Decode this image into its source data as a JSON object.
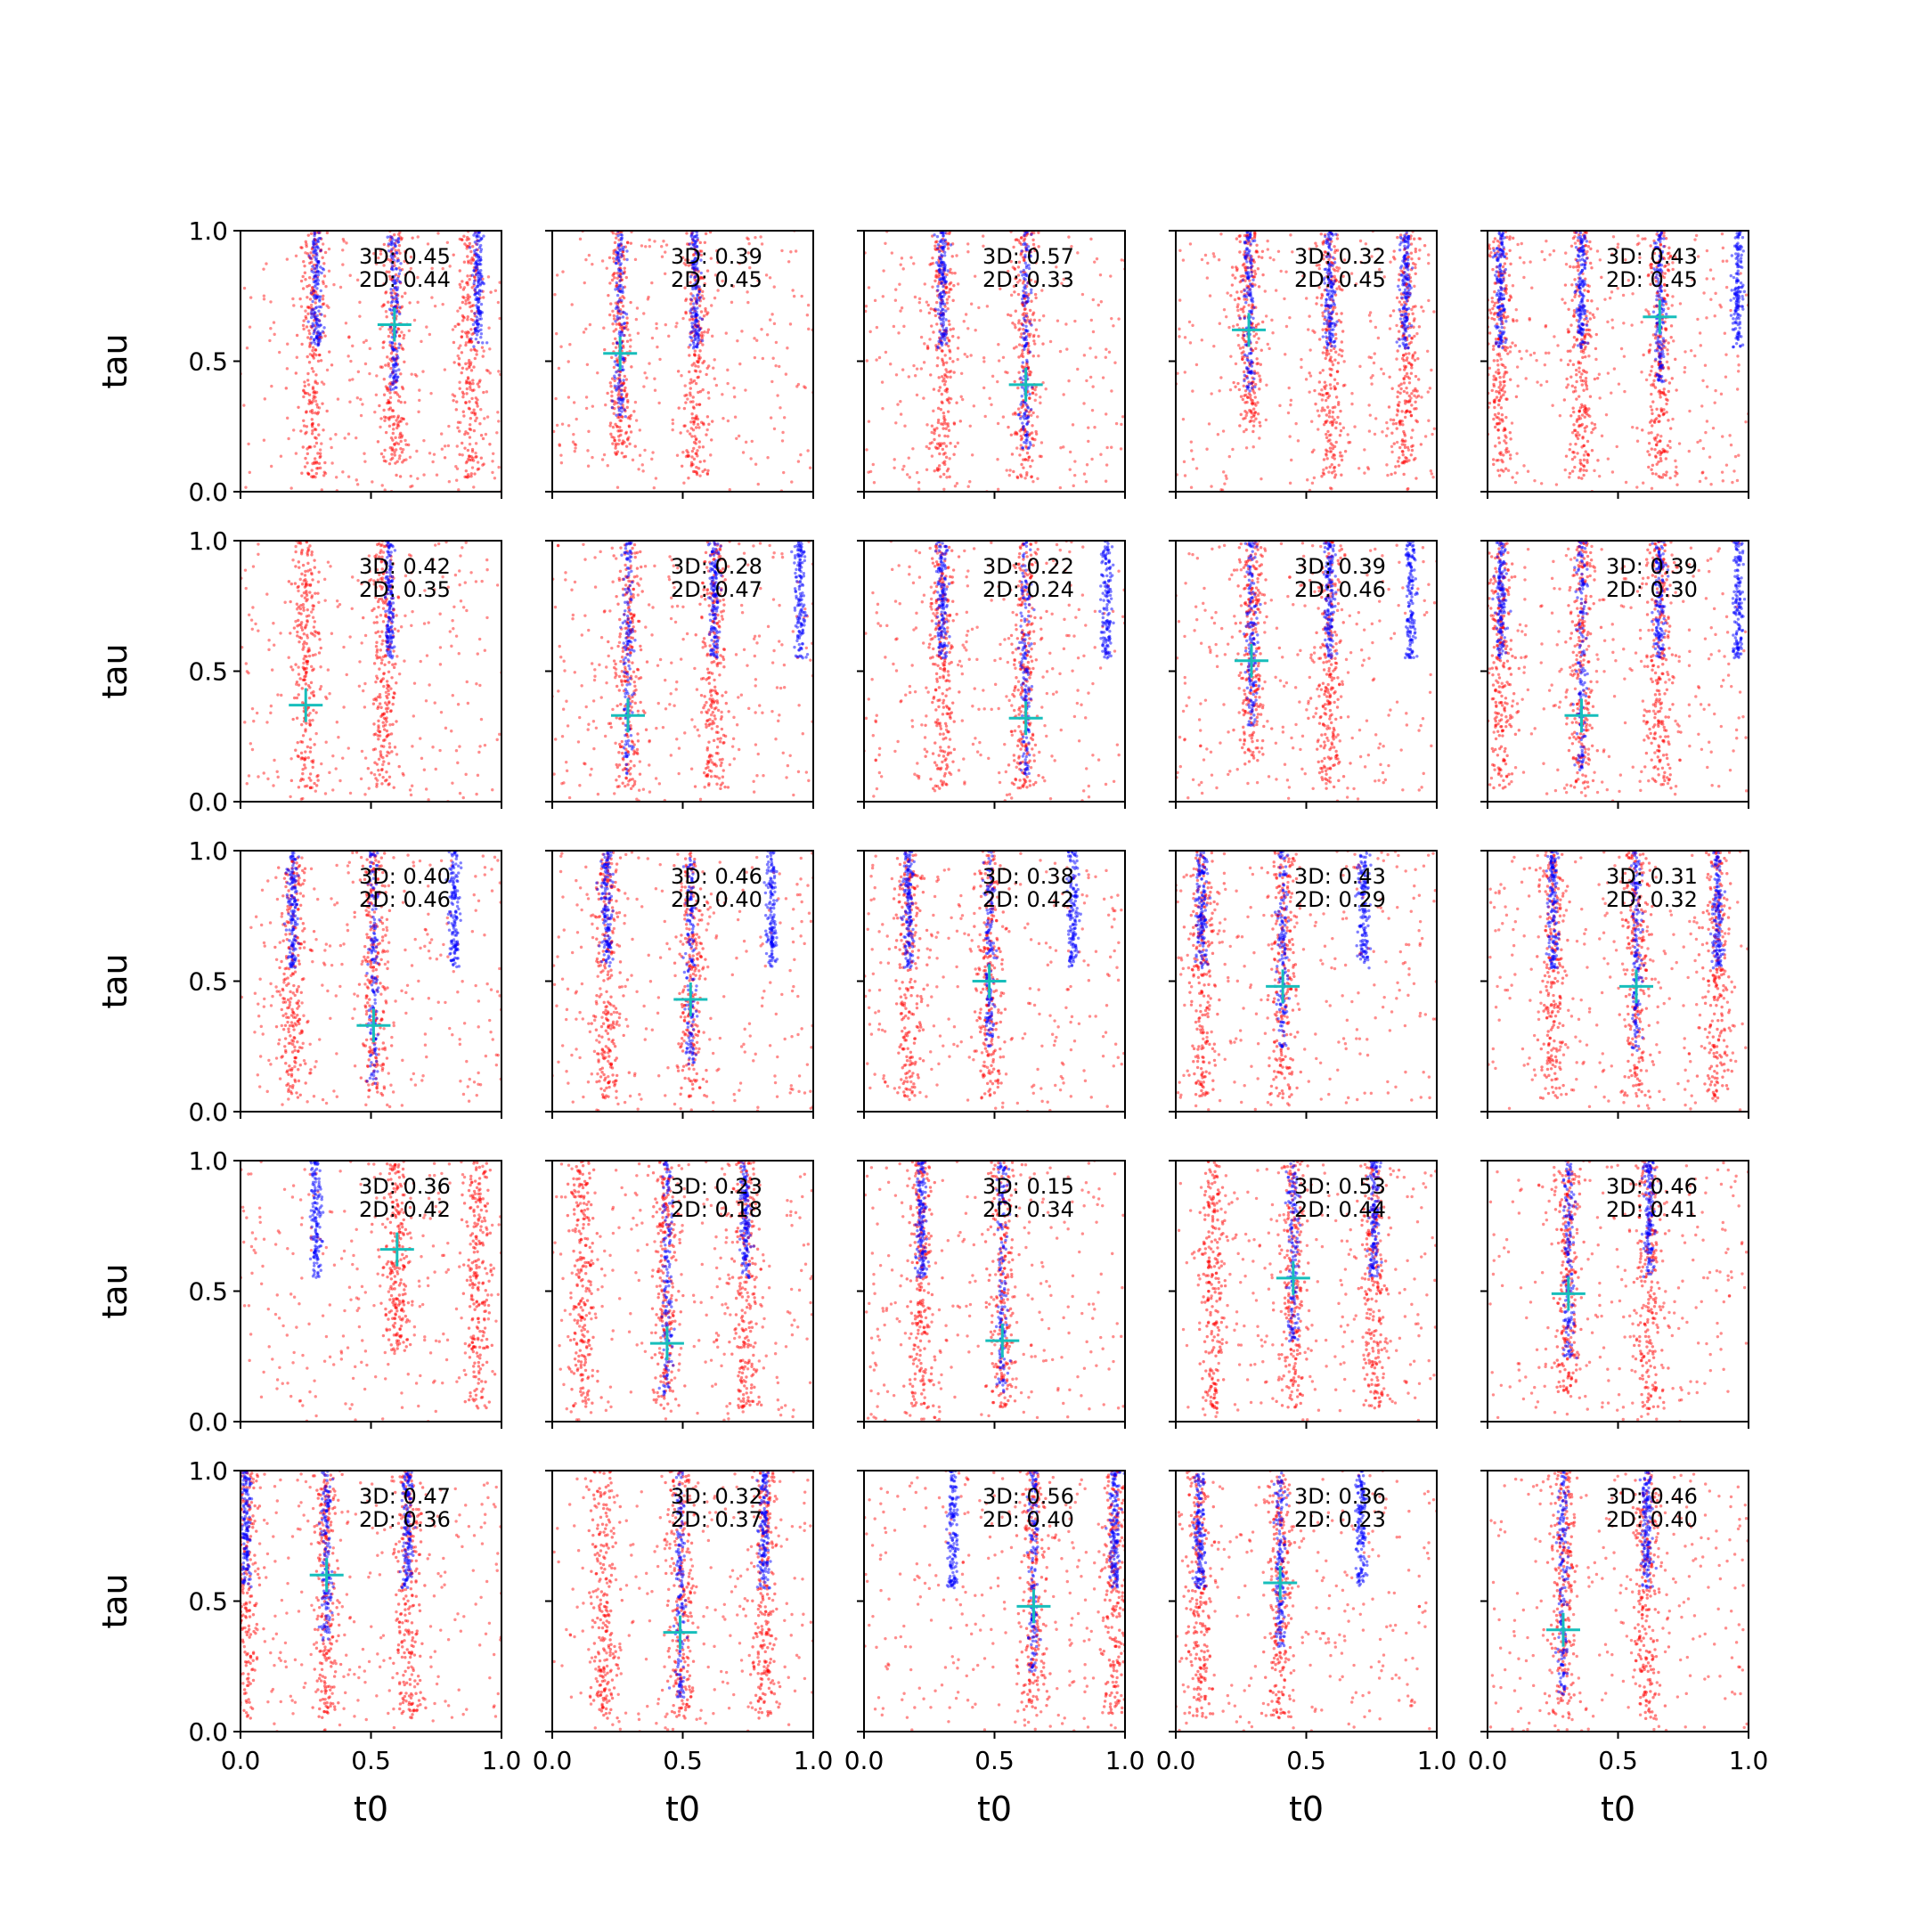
{
  "chart_data": {
    "type": "scatter",
    "layout": {
      "rows": 5,
      "cols": 5
    },
    "xlabel": "t0",
    "ylabel": "tau",
    "xlim": [
      0,
      1
    ],
    "ylim": [
      0,
      1
    ],
    "xticks": [
      "0.0",
      "0.5",
      "1.0"
    ],
    "yticks": [
      "0.0",
      "0.5",
      "1.0"
    ],
    "colors": {
      "background_points": "#ff0000",
      "posterior_points": "#0000ff",
      "truth_marker": "#17bebb",
      "axes": "#000000"
    },
    "annotation_prefixes": {
      "three_d": "3D: ",
      "two_d": "2D: "
    },
    "panels": [
      {
        "three_d": "0.45",
        "two_d": "0.44",
        "truth": [
          0.59,
          0.64
        ],
        "blue_t0": [
          0.29,
          0.59,
          0.91
        ],
        "red_t0": [
          0.28,
          0.59,
          0.88
        ]
      },
      {
        "three_d": "0.39",
        "two_d": "0.45",
        "truth": [
          0.26,
          0.53
        ],
        "blue_t0": [
          0.26,
          0.55
        ],
        "red_t0": [
          0.26,
          0.55
        ]
      },
      {
        "three_d": "0.57",
        "two_d": "0.33",
        "truth": [
          0.62,
          0.41
        ],
        "blue_t0": [
          0.3,
          0.62
        ],
        "red_t0": [
          0.3,
          0.62
        ]
      },
      {
        "three_d": "0.32",
        "two_d": "0.45",
        "truth": [
          0.28,
          0.62
        ],
        "blue_t0": [
          0.28,
          0.59,
          0.88
        ],
        "red_t0": [
          0.28,
          0.59,
          0.88
        ]
      },
      {
        "three_d": "0.43",
        "two_d": "0.45",
        "truth": [
          0.66,
          0.67
        ],
        "blue_t0": [
          0.05,
          0.36,
          0.66,
          0.96
        ],
        "red_t0": [
          0.05,
          0.36,
          0.66
        ]
      },
      {
        "three_d": "0.42",
        "two_d": "0.35",
        "truth": [
          0.25,
          0.37
        ],
        "blue_t0": [
          0.57
        ],
        "red_t0": [
          0.25,
          0.55
        ]
      },
      {
        "three_d": "0.28",
        "two_d": "0.47",
        "truth": [
          0.29,
          0.33
        ],
        "blue_t0": [
          0.29,
          0.62,
          0.95
        ],
        "red_t0": [
          0.29,
          0.62
        ]
      },
      {
        "three_d": "0.22",
        "two_d": "0.24",
        "truth": [
          0.62,
          0.32
        ],
        "blue_t0": [
          0.3,
          0.62,
          0.93
        ],
        "red_t0": [
          0.3,
          0.62
        ]
      },
      {
        "three_d": "0.39",
        "two_d": "0.46",
        "truth": [
          0.29,
          0.54
        ],
        "blue_t0": [
          0.29,
          0.59,
          0.9
        ],
        "red_t0": [
          0.29,
          0.59
        ]
      },
      {
        "three_d": "0.39",
        "two_d": "0.30",
        "truth": [
          0.36,
          0.33
        ],
        "blue_t0": [
          0.05,
          0.36,
          0.66,
          0.96
        ],
        "red_t0": [
          0.05,
          0.36,
          0.66
        ]
      },
      {
        "three_d": "0.40",
        "two_d": "0.46",
        "truth": [
          0.51,
          0.33
        ],
        "blue_t0": [
          0.2,
          0.51,
          0.82
        ],
        "red_t0": [
          0.2,
          0.51
        ]
      },
      {
        "three_d": "0.46",
        "two_d": "0.40",
        "truth": [
          0.53,
          0.43
        ],
        "blue_t0": [
          0.21,
          0.53,
          0.84
        ],
        "red_t0": [
          0.21,
          0.53
        ]
      },
      {
        "three_d": "0.38",
        "two_d": "0.42",
        "truth": [
          0.48,
          0.5
        ],
        "blue_t0": [
          0.17,
          0.48,
          0.8
        ],
        "red_t0": [
          0.17,
          0.48
        ]
      },
      {
        "three_d": "0.43",
        "two_d": "0.29",
        "truth": [
          0.41,
          0.48
        ],
        "blue_t0": [
          0.1,
          0.41,
          0.72
        ],
        "red_t0": [
          0.1,
          0.41
        ]
      },
      {
        "three_d": "0.31",
        "two_d": "0.32",
        "truth": [
          0.57,
          0.48
        ],
        "blue_t0": [
          0.25,
          0.57,
          0.88
        ],
        "red_t0": [
          0.25,
          0.57,
          0.88
        ]
      },
      {
        "three_d": "0.36",
        "two_d": "0.42",
        "truth": [
          0.6,
          0.66
        ],
        "blue_t0": [
          0.29
        ],
        "red_t0": [
          0.6,
          0.91
        ]
      },
      {
        "three_d": "0.23",
        "two_d": "0.18",
        "truth": [
          0.44,
          0.3
        ],
        "blue_t0": [
          0.44,
          0.74
        ],
        "red_t0": [
          0.12,
          0.44,
          0.74
        ]
      },
      {
        "three_d": "0.15",
        "two_d": "0.34",
        "truth": [
          0.53,
          0.31
        ],
        "blue_t0": [
          0.22,
          0.53
        ],
        "red_t0": [
          0.22,
          0.53
        ]
      },
      {
        "three_d": "0.53",
        "two_d": "0.44",
        "truth": [
          0.45,
          0.55
        ],
        "blue_t0": [
          0.45,
          0.76
        ],
        "red_t0": [
          0.14,
          0.45,
          0.76
        ]
      },
      {
        "three_d": "0.46",
        "two_d": "0.41",
        "truth": [
          0.31,
          0.49
        ],
        "blue_t0": [
          0.31,
          0.62
        ],
        "red_t0": [
          0.31,
          0.62
        ]
      },
      {
        "three_d": "0.47",
        "two_d": "0.36",
        "truth": [
          0.33,
          0.6
        ],
        "blue_t0": [
          0.02,
          0.33,
          0.64
        ],
        "red_t0": [
          0.02,
          0.33,
          0.64
        ]
      },
      {
        "three_d": "0.32",
        "two_d": "0.37",
        "truth": [
          0.49,
          0.38
        ],
        "blue_t0": [
          0.49,
          0.81
        ],
        "red_t0": [
          0.2,
          0.49,
          0.81
        ]
      },
      {
        "three_d": "0.56",
        "two_d": "0.40",
        "truth": [
          0.65,
          0.48
        ],
        "blue_t0": [
          0.34,
          0.65,
          0.96
        ],
        "red_t0": [
          0.65,
          0.96
        ]
      },
      {
        "three_d": "0.36",
        "two_d": "0.23",
        "truth": [
          0.4,
          0.57
        ],
        "blue_t0": [
          0.09,
          0.4,
          0.71
        ],
        "red_t0": [
          0.09,
          0.4
        ]
      },
      {
        "three_d": "0.46",
        "two_d": "0.40",
        "truth": [
          0.29,
          0.39
        ],
        "blue_t0": [
          0.29,
          0.61
        ],
        "red_t0": [
          0.29,
          0.61
        ]
      }
    ]
  }
}
